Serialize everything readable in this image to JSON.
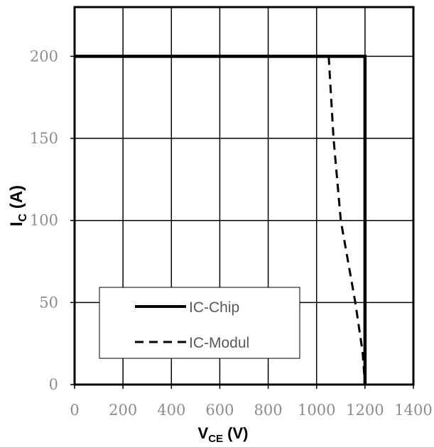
{
  "chart_data": {
    "type": "line",
    "xlabel": {
      "main": "V",
      "sub": "CE",
      "unit": " (V)"
    },
    "ylabel": {
      "main": "I",
      "sub": "C",
      "unit": " (A)"
    },
    "xlim": [
      0,
      1400
    ],
    "ylim": [
      0,
      230
    ],
    "xticks": [
      0,
      200,
      400,
      600,
      800,
      1000,
      1200,
      1400
    ],
    "yticks": [
      0,
      50,
      100,
      150,
      200
    ],
    "grid": true,
    "legend_position": "bottom-left",
    "series": [
      {
        "name": "IC-Chip",
        "style": "solid",
        "color": "#000000",
        "x": [
          0,
          1200,
          1200
        ],
        "y": [
          200,
          200,
          0
        ]
      },
      {
        "name": "IC-Modul",
        "style": "dashed",
        "color": "#000000",
        "x": [
          1050,
          1070,
          1100,
          1130,
          1160,
          1190,
          1200
        ],
        "y": [
          200,
          150,
          100,
          75,
          50,
          20,
          0
        ]
      }
    ]
  }
}
